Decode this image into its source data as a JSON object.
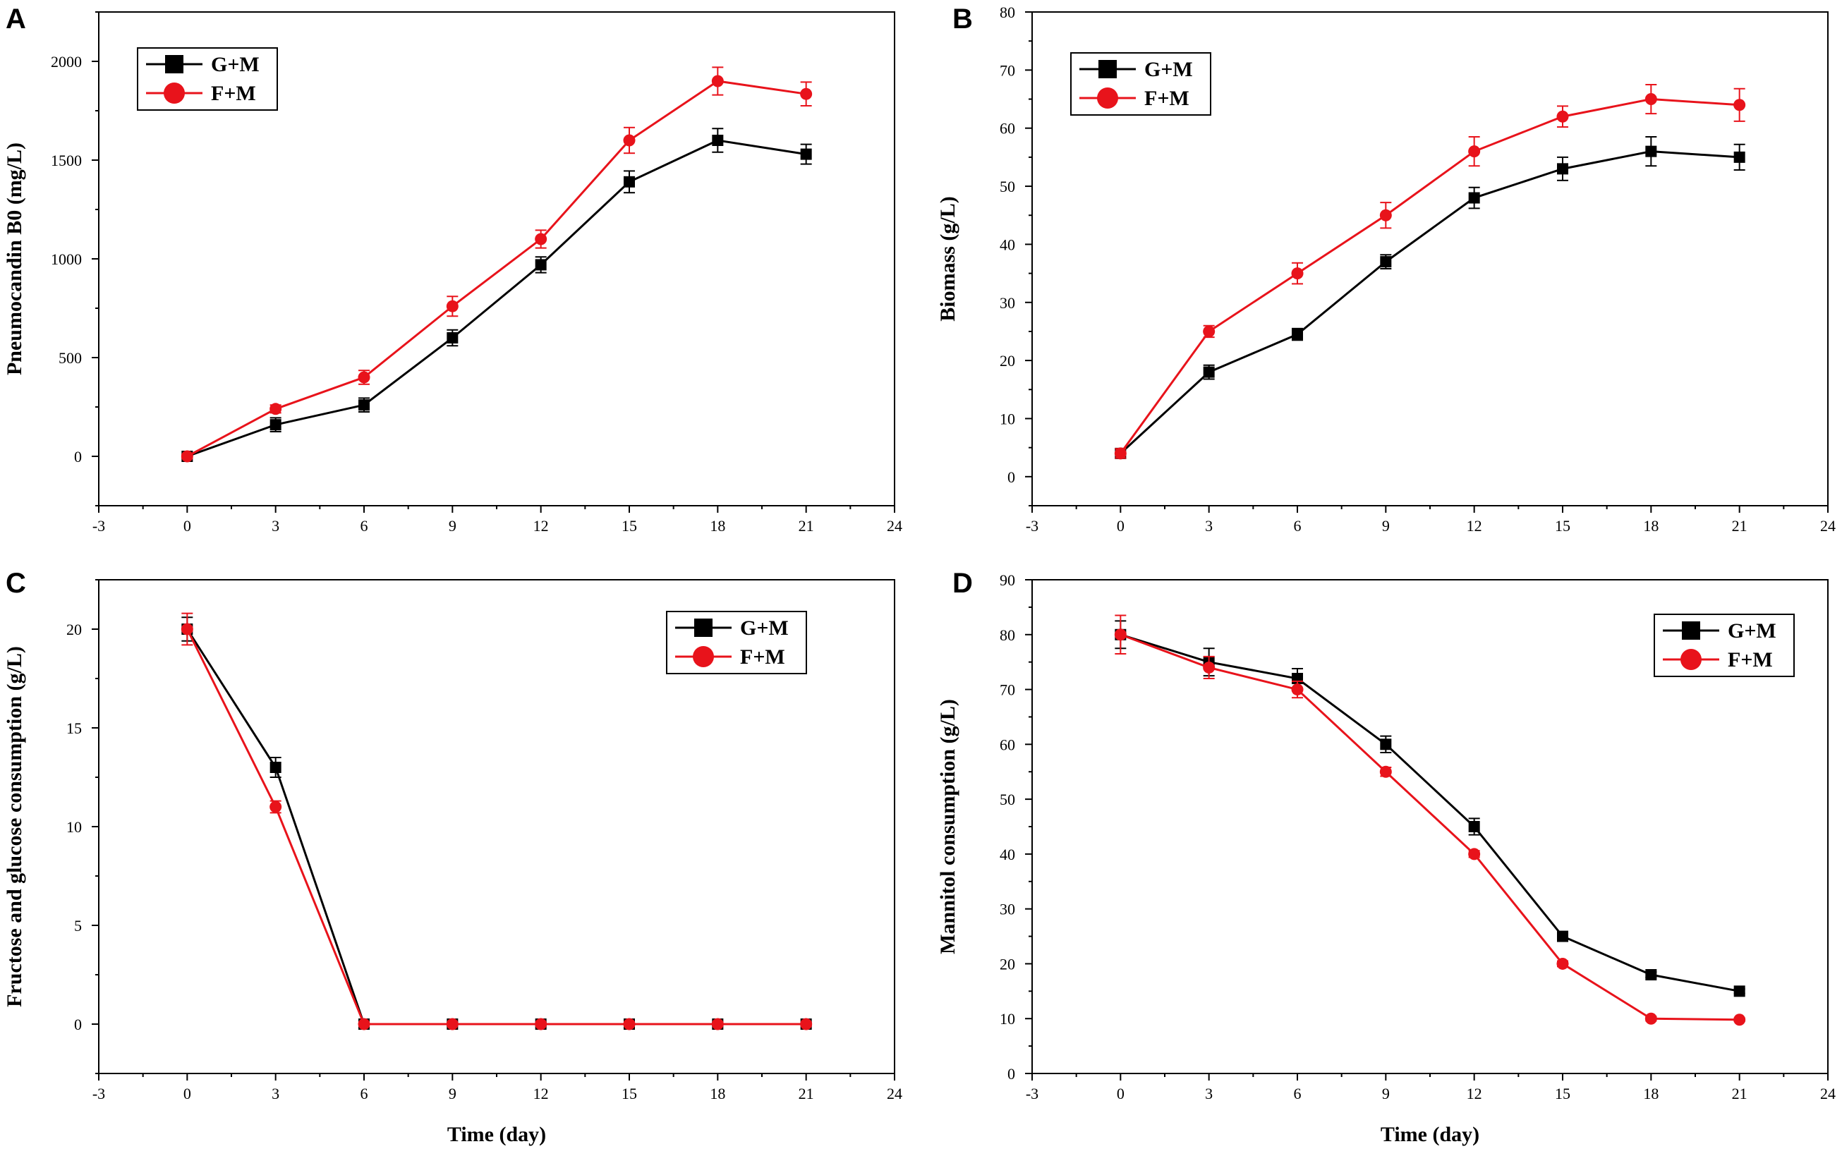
{
  "colors": {
    "g_plus_m": "#000000",
    "f_plus_m": "#e8131b"
  },
  "legend": {
    "g_label": "G+M",
    "f_label": "F+M"
  },
  "chart_data": [
    {
      "panel": "A",
      "type": "line",
      "xlabel": "",
      "ylabel": "Pneumocandin B0 (mg/L)",
      "xlim": [
        -3,
        24
      ],
      "ylim": [
        -250,
        2250
      ],
      "xticks": [
        -3,
        0,
        3,
        6,
        9,
        12,
        15,
        18,
        21,
        24
      ],
      "yticks": [
        0,
        500,
        1000,
        1500,
        2000
      ],
      "legend_position": "top-left",
      "x": [
        0,
        3,
        6,
        9,
        12,
        15,
        18,
        21
      ],
      "series": [
        {
          "name": "G+M",
          "marker": "square",
          "values": [
            0,
            160,
            260,
            600,
            970,
            1390,
            1600,
            1530
          ],
          "errors": [
            10,
            35,
            35,
            40,
            40,
            55,
            60,
            50
          ]
        },
        {
          "name": "F+M",
          "marker": "circle",
          "values": [
            0,
            240,
            400,
            760,
            1100,
            1600,
            1900,
            1835
          ],
          "errors": [
            10,
            20,
            35,
            50,
            45,
            65,
            70,
            60
          ]
        }
      ]
    },
    {
      "panel": "B",
      "type": "line",
      "xlabel": "",
      "ylabel": "Biomass (g/L)",
      "xlim": [
        -3,
        24
      ],
      "ylim": [
        -5,
        80
      ],
      "xticks": [
        -3,
        0,
        3,
        6,
        9,
        12,
        15,
        18,
        21,
        24
      ],
      "yticks": [
        0,
        10,
        20,
        30,
        40,
        50,
        60,
        70,
        80
      ],
      "legend_position": "top-left",
      "x": [
        0,
        3,
        6,
        9,
        12,
        15,
        18,
        21
      ],
      "series": [
        {
          "name": "G+M",
          "marker": "square",
          "values": [
            4,
            18,
            24.5,
            37,
            48,
            53,
            56,
            55
          ],
          "errors": [
            0.8,
            1.2,
            1.0,
            1.2,
            1.8,
            2.0,
            2.5,
            2.2
          ]
        },
        {
          "name": "F+M",
          "marker": "circle",
          "values": [
            4,
            25,
            35,
            45,
            56,
            62,
            65,
            64
          ],
          "errors": [
            0.8,
            1.0,
            1.8,
            2.2,
            2.5,
            1.8,
            2.5,
            2.8
          ]
        }
      ]
    },
    {
      "panel": "C",
      "type": "line",
      "xlabel": "Time (day)",
      "ylabel": "Fructose and glucose consumption (g/L)",
      "xlim": [
        -3,
        24
      ],
      "ylim": [
        -2.5,
        22.5
      ],
      "xticks": [
        -3,
        0,
        3,
        6,
        9,
        12,
        15,
        18,
        21,
        24
      ],
      "yticks": [
        0,
        5,
        10,
        15,
        20
      ],
      "legend_position": "top-right",
      "x": [
        0,
        3,
        6,
        9,
        12,
        15,
        18,
        21
      ],
      "series": [
        {
          "name": "G+M",
          "marker": "square",
          "values": [
            20,
            13,
            0,
            0,
            0,
            0,
            0,
            0
          ],
          "errors": [
            0.6,
            0.5,
            0.1,
            0.1,
            0.1,
            0.1,
            0.1,
            0.1
          ]
        },
        {
          "name": "F+M",
          "marker": "circle",
          "values": [
            20,
            11,
            0,
            0,
            0,
            0,
            0,
            0
          ],
          "errors": [
            0.8,
            0.3,
            0.1,
            0.1,
            0.1,
            0.1,
            0.1,
            0.1
          ]
        }
      ]
    },
    {
      "panel": "D",
      "type": "line",
      "xlabel": "Time (day)",
      "ylabel": "Mannitol consumption (g/L)",
      "xlim": [
        -3,
        24
      ],
      "ylim": [
        0,
        90
      ],
      "xticks": [
        -3,
        0,
        3,
        6,
        9,
        12,
        15,
        18,
        21,
        24
      ],
      "yticks": [
        0,
        10,
        20,
        30,
        40,
        50,
        60,
        70,
        80,
        90
      ],
      "legend_position": "top-right",
      "x": [
        0,
        3,
        6,
        9,
        12,
        15,
        18,
        21
      ],
      "series": [
        {
          "name": "G+M",
          "marker": "square",
          "values": [
            80,
            75,
            72,
            60,
            45,
            25,
            18,
            15
          ],
          "errors": [
            2.5,
            2.5,
            1.8,
            1.5,
            1.5,
            0.5,
            0.5,
            0.4
          ]
        },
        {
          "name": "F+M",
          "marker": "circle",
          "values": [
            80,
            74,
            70,
            55,
            40,
            20,
            10,
            9.8
          ],
          "errors": [
            3.5,
            2.0,
            1.5,
            0.8,
            0.6,
            0.5,
            0.4,
            0.3
          ]
        }
      ]
    }
  ]
}
